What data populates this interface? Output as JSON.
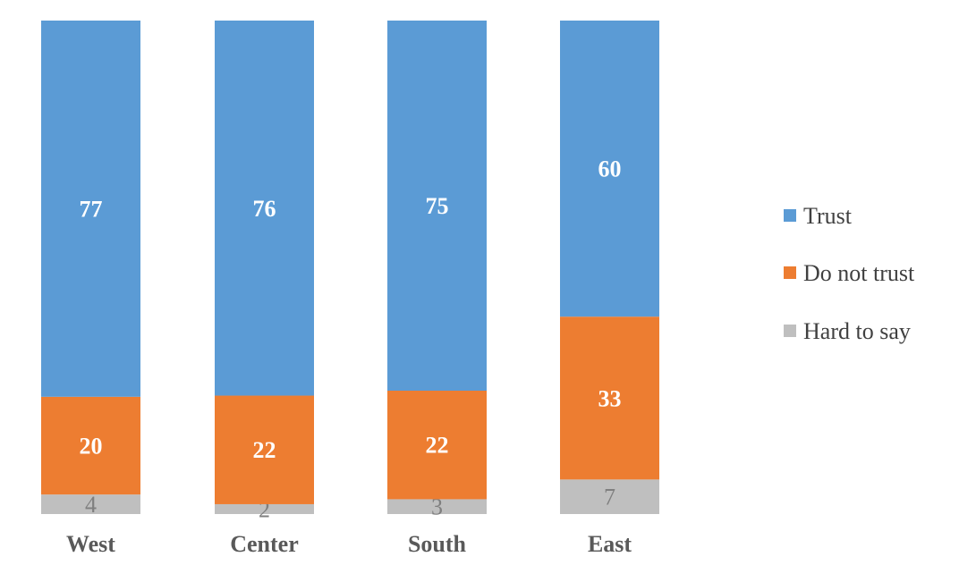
{
  "chart_data": {
    "type": "bar",
    "stacked": true,
    "categories": [
      "West",
      "Center",
      "South",
      "East"
    ],
    "series": [
      {
        "name": "Trust",
        "color": "#5b9bd5",
        "values": [
          77,
          76,
          75,
          60
        ]
      },
      {
        "name": "Do not trust",
        "color": "#ed7d31",
        "values": [
          20,
          22,
          22,
          33
        ]
      },
      {
        "name": "Hard to say",
        "color": "#bfbfbf",
        "values": [
          4,
          2,
          3,
          7
        ]
      }
    ],
    "legend_position": "right",
    "grid": false
  }
}
